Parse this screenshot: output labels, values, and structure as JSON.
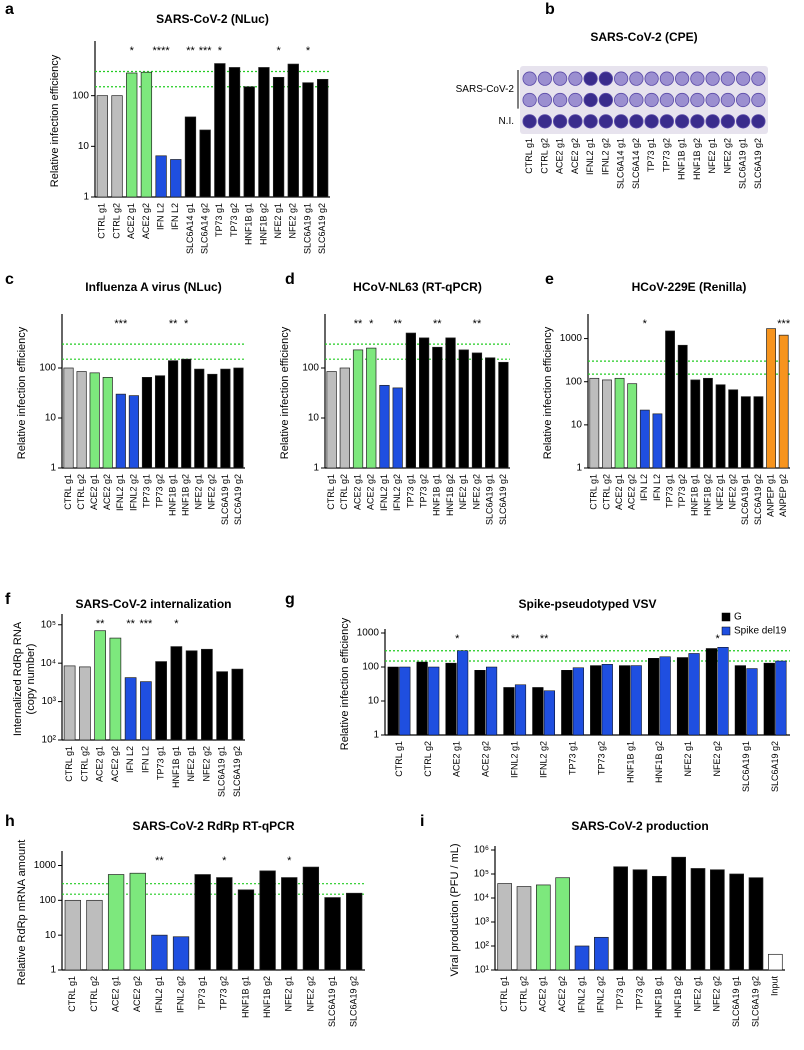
{
  "chart_data": [
    {
      "panel": "a",
      "type": "bar",
      "title": "SARS-CoV-2 (NLuc)",
      "y_label": "Relative infection efficiency",
      "log_scale": true,
      "categories": [
        "CTRL g1",
        "CTRL g2",
        "ACE2 g1",
        "ACE2 g2",
        "IFN L2",
        "IFN L2",
        "SLC6A14 g1",
        "SLC6A14 g2",
        "TP73 g1",
        "TP73 g2",
        "HNF1B g1",
        "HNF1B g2",
        "NFE2 g1",
        "NFE2 g2",
        "SLC6A19 g1",
        "SLC6A19 g2"
      ],
      "values": [
        100,
        100,
        280,
        290,
        6.5,
        5.5,
        38,
        21,
        430,
        360,
        150,
        360,
        230,
        420,
        180,
        210
      ],
      "colors": [
        "#bdbdbd",
        "#bdbdbd",
        "#7de87d",
        "#7de87d",
        "#1f4fe0",
        "#1f4fe0",
        "#000000",
        "#000000",
        "#000000",
        "#000000",
        "#000000",
        "#000000",
        "#000000",
        "#000000",
        "#000000",
        "#000000"
      ],
      "significance": [
        null,
        null,
        "*",
        null,
        "****",
        null,
        "**",
        "***",
        "*",
        null,
        null,
        null,
        "*",
        null,
        "*",
        null
      ],
      "reference_lines": [
        150,
        300
      ],
      "reference_color": "#22cc22",
      "ylim": [
        1,
        1000
      ],
      "yticks": [
        1,
        10,
        100
      ]
    },
    {
      "panel": "b",
      "type": "plate",
      "title": "SARS-CoV-2 (CPE)",
      "row_labels": [
        "SARS-CoV-2",
        "N.I."
      ],
      "categories": [
        "CTRL g1",
        "CTRL g2",
        "ACE2 g1",
        "ACE2 g2",
        "IFNL2 g1",
        "IFNL2 g2",
        "SLC6A14 g1",
        "SLC6A14 g2",
        "TP73 g1",
        "TP73 g2",
        "HNF1B g1",
        "HNF1B g2",
        "NFE2 g1",
        "NFE2 g2",
        "SLC6A19 g1",
        "SLC6A19 g2"
      ]
    },
    {
      "panel": "c",
      "type": "bar",
      "title": "Influenza A virus (NLuc)",
      "y_label": "Relative infection efficiency",
      "log_scale": true,
      "categories": [
        "CTRL g1",
        "CTRL g2",
        "ACE2 g1",
        "ACE2 g2",
        "IFNL2 g1",
        "IFNL2 g2",
        "TP73 g1",
        "TP73 g2",
        "HNF1B g1",
        "HNF1B g2",
        "NFE2 g1",
        "NFE2 g2",
        "SLC6A19 g1",
        "SLC6A19 g2"
      ],
      "values": [
        100,
        85,
        80,
        65,
        30,
        28,
        65,
        70,
        140,
        150,
        95,
        75,
        95,
        100
      ],
      "colors": [
        "#bdbdbd",
        "#bdbdbd",
        "#7de87d",
        "#7de87d",
        "#1f4fe0",
        "#1f4fe0",
        "#000000",
        "#000000",
        "#000000",
        "#000000",
        "#000000",
        "#000000",
        "#000000",
        "#000000"
      ],
      "significance": [
        null,
        null,
        null,
        null,
        "***",
        null,
        null,
        null,
        "**",
        "*",
        null,
        null,
        null,
        null
      ],
      "reference_lines": [
        150,
        300
      ],
      "reference_color": "#22cc22",
      "ylim": [
        1,
        1000
      ],
      "yticks": [
        1,
        10,
        100
      ]
    },
    {
      "panel": "d",
      "type": "bar",
      "title": "HCoV-NL63 (RT-qPCR)",
      "y_label": "Relative infection efficiency",
      "log_scale": true,
      "categories": [
        "CTRL g1",
        "CTRL g2",
        "ACE2 g1",
        "ACE2 g2",
        "IFNL2 g1",
        "IFNL2 g2",
        "TP73 g1",
        "TP73 g2",
        "HNF1B g1",
        "HNF1B g2",
        "NFE2 g1",
        "NFE2 g2",
        "SLC6A19 g1",
        "SLC6A19 g2"
      ],
      "values": [
        85,
        100,
        230,
        250,
        45,
        40,
        500,
        400,
        260,
        400,
        230,
        200,
        160,
        130
      ],
      "colors": [
        "#bdbdbd",
        "#bdbdbd",
        "#7de87d",
        "#7de87d",
        "#1f4fe0",
        "#1f4fe0",
        "#000000",
        "#000000",
        "#000000",
        "#000000",
        "#000000",
        "#000000",
        "#000000",
        "#000000"
      ],
      "significance": [
        null,
        null,
        "**",
        "*",
        null,
        "**",
        null,
        null,
        "**",
        null,
        null,
        "**",
        null,
        null
      ],
      "reference_lines": [
        150,
        300
      ],
      "reference_color": "#22cc22",
      "ylim": [
        1,
        1000
      ],
      "yticks": [
        1,
        10,
        100
      ]
    },
    {
      "panel": "e",
      "type": "bar",
      "title": "HCoV-229E (Renilla)",
      "y_label": "Relative infection efficiency",
      "log_scale": true,
      "categories": [
        "CTRL g1",
        "CTRL g2",
        "ACE2 g1",
        "ACE2 g2",
        "IFN L2",
        "IFN L2",
        "TP73 g1",
        "TP73 g2",
        "HNF1B g1",
        "HNF1B g2",
        "NFE2 g1",
        "NFE2 g2",
        "SLC6A19 g1",
        "SLC6A19 g2",
        "ANPEP g1",
        "ANPEP g2"
      ],
      "values": [
        120,
        110,
        120,
        90,
        22,
        18,
        1500,
        700,
        110,
        120,
        85,
        65,
        45,
        45,
        1700,
        1200
      ],
      "colors": [
        "#bdbdbd",
        "#bdbdbd",
        "#7de87d",
        "#7de87d",
        "#1f4fe0",
        "#1f4fe0",
        "#000000",
        "#000000",
        "#000000",
        "#000000",
        "#000000",
        "#000000",
        "#000000",
        "#000000",
        "#f7941d",
        "#f7941d"
      ],
      "significance": [
        null,
        null,
        null,
        null,
        "*",
        null,
        null,
        null,
        null,
        null,
        null,
        null,
        null,
        null,
        null,
        "***"
      ],
      "reference_lines": [
        150,
        300
      ],
      "reference_color": "#22cc22",
      "ylim": [
        1,
        3000
      ],
      "yticks": [
        1,
        10,
        100,
        1000
      ]
    },
    {
      "panel": "f",
      "type": "bar",
      "title": "SARS-CoV-2 internalization",
      "y_label": [
        "Internalized RdRp RNA",
        "(copy number)"
      ],
      "log_scale": true,
      "categories": [
        "CTRL g1",
        "CTRL g2",
        "ACE2 g1",
        "ACE2 g2",
        "IFN L2",
        "IFN L2",
        "TP73 g1",
        "HNF1B g1",
        "NFE2 g1",
        "NFE2 g2",
        "SLC6A19 g1",
        "SLC6A19 g2"
      ],
      "values": [
        8500,
        8000,
        70000,
        45000,
        4200,
        3300,
        11000,
        27000,
        21000,
        23000,
        6000,
        7000
      ],
      "colors": [
        "#bdbdbd",
        "#bdbdbd",
        "#7de87d",
        "#7de87d",
        "#1f4fe0",
        "#1f4fe0",
        "#000000",
        "#000000",
        "#000000",
        "#000000",
        "#000000",
        "#000000"
      ],
      "significance": [
        null,
        null,
        "**",
        null,
        "**",
        "***",
        null,
        "*",
        null,
        null,
        null,
        null
      ],
      "ylim": [
        100,
        150000
      ],
      "yticks": [
        {
          "value": 100,
          "label": "10²"
        },
        {
          "value": 1000,
          "label": "10³"
        },
        {
          "value": 10000,
          "label": "10⁴"
        },
        {
          "value": 100000,
          "label": "10⁵"
        }
      ]
    },
    {
      "panel": "g",
      "type": "bar",
      "title": "Spike-pseudotyped VSV",
      "y_label": "Relative infection efficiency",
      "log_scale": true,
      "legend": "upper right",
      "categories": [
        "CTRL g1",
        "CTRL g2",
        "ACE2 g1",
        "ACE2 g2",
        "IFNL2 g1",
        "IFNL2 g2",
        "TP73 g1",
        "TP73 g2",
        "HNF1B g1",
        "HNF1B g2",
        "NFE2 g1",
        "NFE2 g2",
        "SLC6A19 g1",
        "SLC6A19 g2"
      ],
      "series": [
        {
          "name": "G",
          "color": "#000000",
          "values": [
            100,
            140,
            130,
            80,
            25,
            25,
            80,
            110,
            110,
            180,
            190,
            350,
            110,
            130
          ]
        },
        {
          "name": "Spike del19",
          "color": "#1f4fe0",
          "values": [
            100,
            100,
            300,
            100,
            30,
            20,
            95,
            120,
            110,
            200,
            250,
            380,
            90,
            150
          ]
        }
      ],
      "significance": [
        null,
        null,
        "*",
        null,
        "**",
        "**",
        null,
        null,
        null,
        null,
        null,
        "*",
        null,
        null
      ],
      "reference_lines": [
        150,
        300
      ],
      "reference_color": "#22cc22",
      "ylim": [
        1,
        1000
      ],
      "yticks": [
        1,
        10,
        100,
        1000
      ]
    },
    {
      "panel": "h",
      "type": "bar",
      "title": "SARS-CoV-2 RdRp RT-qPCR",
      "y_label": "Relative RdRp mRNA amount",
      "log_scale": true,
      "categories": [
        "CTRL g1",
        "CTRL g2",
        "ACE2 g1",
        "ACE2 g2",
        "IFNL2 g1",
        "IFNL2 g2",
        "TP73 g1",
        "TP73 g2",
        "HNF1B g1",
        "HNF1B g2",
        "NFE2 g1",
        "NFE2 g2",
        "SLC6A19 g1",
        "SLC6A19 g2"
      ],
      "values": [
        100,
        100,
        550,
        600,
        10,
        9,
        550,
        450,
        200,
        700,
        450,
        900,
        120,
        160
      ],
      "colors": [
        "#bdbdbd",
        "#bdbdbd",
        "#7de87d",
        "#7de87d",
        "#1f4fe0",
        "#1f4fe0",
        "#000000",
        "#000000",
        "#000000",
        "#000000",
        "#000000",
        "#000000",
        "#000000",
        "#000000"
      ],
      "significance": [
        null,
        null,
        null,
        null,
        "**",
        null,
        null,
        "*",
        null,
        null,
        "*",
        null,
        null,
        null
      ],
      "reference_lines": [
        150,
        300
      ],
      "reference_color": "#22cc22",
      "ylim": [
        1,
        2000
      ],
      "yticks": [
        1,
        10,
        100,
        1000
      ]
    },
    {
      "panel": "i",
      "type": "bar",
      "title": "SARS-CoV-2 production",
      "y_label": "Viral production (PFU / mL)",
      "log_scale": true,
      "categories": [
        "CTRL g1",
        "CTRL g2",
        "ACE2 g1",
        "ACE2 g2",
        "IFNL2 g1",
        "IFNL2 g2",
        "TP73 g1",
        "TP73 g2",
        "HNF1B g1",
        "HNF1B g2",
        "NFE2 g1",
        "NFE2 g2",
        "SLC6A19 g1",
        "SLC6A19 g2",
        "Input"
      ],
      "values": [
        40000,
        30000,
        35000,
        70000,
        100,
        230,
        200000,
        150000,
        80000,
        500000,
        170000,
        150000,
        100000,
        70000,
        45
      ],
      "colors": [
        "#bdbdbd",
        "#bdbdbd",
        "#7de87d",
        "#7de87d",
        "#1f4fe0",
        "#1f4fe0",
        "#000000",
        "#000000",
        "#000000",
        "#000000",
        "#000000",
        "#000000",
        "#000000",
        "#000000",
        "#ffffff"
      ],
      "ylim": [
        10,
        1000000
      ],
      "yticks": [
        {
          "value": 10,
          "label": "10¹"
        },
        {
          "value": 100,
          "label": "10²"
        },
        {
          "value": 1000,
          "label": "10³"
        },
        {
          "value": 10000,
          "label": "10⁴"
        },
        {
          "value": 100000,
          "label": "10⁵"
        },
        {
          "value": 1000000,
          "label": "10⁶"
        }
      ]
    }
  ]
}
